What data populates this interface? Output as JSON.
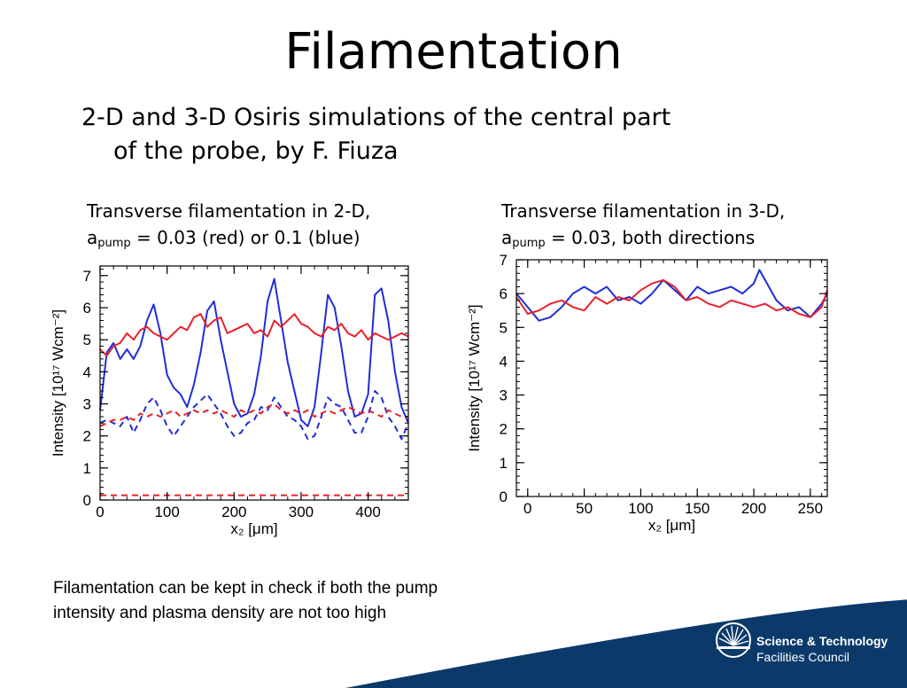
{
  "slide": {
    "title": "Filamentation",
    "subtitle_line1": "2-D and 3-D Osiris simulations of the central part",
    "subtitle_line2": "of the probe, by F. Fiuza",
    "caption1_line1": "Transverse filamentation in 2-D,",
    "caption1_a": "a",
    "caption1_sub": "pump",
    "caption1_rest": " = 0.03 (red) or 0.1 (blue)",
    "caption2_line1": "Transverse filamentation in 3-D,",
    "caption2_a": "a",
    "caption2_sub": "pump",
    "caption2_rest": " = 0.03, both directions",
    "note_line1": "Filamentation can be kept in check if both the pump",
    "note_line2": "intensity and plasma density are not too high",
    "logo_line1": "Science & Technology",
    "logo_line2": "Facilities Council",
    "colors": {
      "red": "#e8202a",
      "blue": "#1f2ed6",
      "logo_bg": "#0b3a6a"
    }
  },
  "chart_data": [
    {
      "type": "line",
      "xlabel": "x₂ [μm]",
      "ylabel": "Intensity [10¹⁷ Wcm⁻²]",
      "xlim": [
        0,
        460
      ],
      "ylim": [
        0,
        7.3
      ],
      "x_ticks": [
        0,
        100,
        200,
        300,
        400
      ],
      "y_ticks": [
        0,
        1,
        2,
        3,
        4,
        5,
        6,
        7
      ],
      "series": [
        {
          "color": "#1f2ed6",
          "dash": "solid",
          "x": [
            0,
            10,
            20,
            30,
            40,
            50,
            60,
            70,
            80,
            90,
            100,
            110,
            120,
            130,
            140,
            150,
            160,
            170,
            180,
            190,
            200,
            210,
            220,
            230,
            240,
            250,
            260,
            270,
            280,
            290,
            300,
            310,
            320,
            330,
            340,
            350,
            360,
            370,
            380,
            390,
            400,
            410,
            420,
            430,
            440,
            450,
            460
          ],
          "y": [
            2.8,
            4.6,
            4.9,
            4.4,
            4.7,
            4.4,
            4.8,
            5.6,
            6.1,
            5.2,
            3.9,
            3.5,
            3.3,
            2.9,
            3.6,
            4.6,
            5.9,
            6.2,
            5.0,
            4.0,
            3.0,
            2.6,
            2.7,
            3.3,
            4.5,
            6.2,
            6.9,
            5.6,
            4.3,
            3.4,
            2.5,
            2.3,
            2.9,
            4.6,
            6.4,
            6.0,
            4.8,
            3.4,
            2.6,
            2.7,
            3.3,
            6.4,
            6.6,
            5.6,
            4.0,
            2.9,
            2.4
          ]
        },
        {
          "color": "#1f2ed6",
          "dash": "dashed",
          "x": [
            0,
            10,
            20,
            30,
            40,
            50,
            60,
            70,
            80,
            90,
            100,
            110,
            120,
            130,
            140,
            150,
            160,
            170,
            180,
            190,
            200,
            210,
            220,
            230,
            240,
            250,
            260,
            270,
            280,
            290,
            300,
            310,
            320,
            330,
            340,
            350,
            360,
            370,
            380,
            390,
            400,
            410,
            420,
            430,
            440,
            450,
            460
          ],
          "y": [
            2.4,
            2.5,
            2.4,
            2.3,
            2.6,
            2.1,
            2.5,
            3.0,
            3.2,
            2.8,
            2.3,
            2.0,
            2.3,
            2.6,
            2.9,
            3.1,
            3.3,
            3.0,
            2.7,
            2.3,
            2.0,
            2.1,
            2.4,
            2.5,
            2.9,
            2.8,
            3.2,
            2.9,
            2.6,
            2.5,
            2.3,
            1.9,
            2.0,
            2.6,
            3.2,
            3.0,
            2.9,
            2.5,
            2.1,
            2.1,
            2.6,
            3.4,
            3.2,
            2.6,
            2.3,
            1.9,
            2.4
          ]
        },
        {
          "color": "#e8202a",
          "dash": "solid",
          "x": [
            0,
            10,
            20,
            30,
            40,
            50,
            60,
            70,
            80,
            90,
            100,
            110,
            120,
            130,
            140,
            150,
            160,
            170,
            180,
            190,
            200,
            210,
            220,
            230,
            240,
            250,
            260,
            270,
            280,
            290,
            300,
            310,
            320,
            330,
            340,
            350,
            360,
            370,
            380,
            390,
            400,
            410,
            420,
            430,
            440,
            450,
            460
          ],
          "y": [
            4.7,
            4.5,
            4.8,
            4.9,
            5.2,
            5.0,
            5.3,
            5.4,
            5.2,
            5.1,
            5.0,
            5.2,
            5.4,
            5.3,
            5.7,
            5.8,
            5.4,
            5.6,
            5.7,
            5.2,
            5.3,
            5.4,
            5.5,
            5.2,
            5.3,
            5.1,
            5.6,
            5.4,
            5.6,
            5.8,
            5.5,
            5.4,
            5.2,
            5.1,
            5.4,
            5.3,
            5.5,
            5.2,
            5.1,
            5.3,
            5.0,
            5.2,
            5.1,
            5.0,
            5.1,
            5.2,
            5.1
          ]
        },
        {
          "color": "#e8202a",
          "dash": "dashed",
          "x": [
            0,
            10,
            20,
            30,
            40,
            50,
            60,
            70,
            80,
            90,
            100,
            110,
            120,
            130,
            140,
            150,
            160,
            170,
            180,
            190,
            200,
            210,
            220,
            230,
            240,
            250,
            260,
            270,
            280,
            290,
            300,
            310,
            320,
            330,
            340,
            350,
            360,
            370,
            380,
            390,
            400,
            410,
            420,
            430,
            440,
            450,
            460
          ],
          "y": [
            2.3,
            2.4,
            2.5,
            2.5,
            2.6,
            2.5,
            2.7,
            2.6,
            2.7,
            2.6,
            2.7,
            2.8,
            2.6,
            2.7,
            2.8,
            2.7,
            2.8,
            2.7,
            2.8,
            2.7,
            2.6,
            2.8,
            2.7,
            2.8,
            2.7,
            2.9,
            3.0,
            2.8,
            2.7,
            2.8,
            2.7,
            2.8,
            2.6,
            2.7,
            2.8,
            2.7,
            2.8,
            2.9,
            2.8,
            2.7,
            2.8,
            2.7,
            2.6,
            2.8,
            2.7,
            2.6,
            2.6
          ]
        },
        {
          "color": "#e8202a",
          "dash": "dashed",
          "x": [
            0,
            460
          ],
          "y": [
            0.15,
            0.15
          ]
        }
      ]
    },
    {
      "type": "line",
      "xlabel": "x₂ [μm]",
      "ylabel": "Intensity [10¹⁷ Wcm⁻²]",
      "xlim": [
        -10,
        265
      ],
      "ylim": [
        0,
        7
      ],
      "x_ticks": [
        0,
        50,
        100,
        150,
        200,
        250
      ],
      "y_ticks": [
        0,
        1,
        2,
        3,
        4,
        5,
        6,
        7
      ],
      "series": [
        {
          "color": "#1f2ed6",
          "dash": "solid",
          "x": [
            -10,
            0,
            10,
            20,
            30,
            40,
            50,
            60,
            70,
            80,
            90,
            100,
            110,
            120,
            130,
            140,
            150,
            160,
            170,
            180,
            190,
            200,
            205,
            210,
            220,
            230,
            240,
            250,
            260,
            265
          ],
          "y": [
            6.0,
            5.6,
            5.2,
            5.3,
            5.6,
            6.0,
            6.2,
            6.0,
            6.2,
            5.8,
            5.9,
            5.7,
            6.0,
            6.4,
            6.1,
            5.8,
            6.2,
            6.0,
            6.1,
            6.2,
            6.0,
            6.3,
            6.7,
            6.4,
            5.8,
            5.5,
            5.6,
            5.3,
            5.7,
            6.0
          ]
        },
        {
          "color": "#e8202a",
          "dash": "solid",
          "x": [
            -10,
            0,
            10,
            20,
            30,
            40,
            50,
            60,
            70,
            80,
            90,
            100,
            110,
            120,
            130,
            140,
            150,
            160,
            170,
            180,
            190,
            200,
            210,
            220,
            230,
            240,
            250,
            260,
            265
          ],
          "y": [
            5.9,
            5.4,
            5.5,
            5.7,
            5.8,
            5.6,
            5.5,
            5.9,
            5.7,
            5.9,
            5.8,
            6.1,
            6.3,
            6.4,
            6.2,
            5.8,
            5.9,
            5.7,
            5.6,
            5.8,
            5.7,
            5.6,
            5.7,
            5.5,
            5.6,
            5.4,
            5.3,
            5.6,
            6.1
          ]
        }
      ]
    }
  ]
}
